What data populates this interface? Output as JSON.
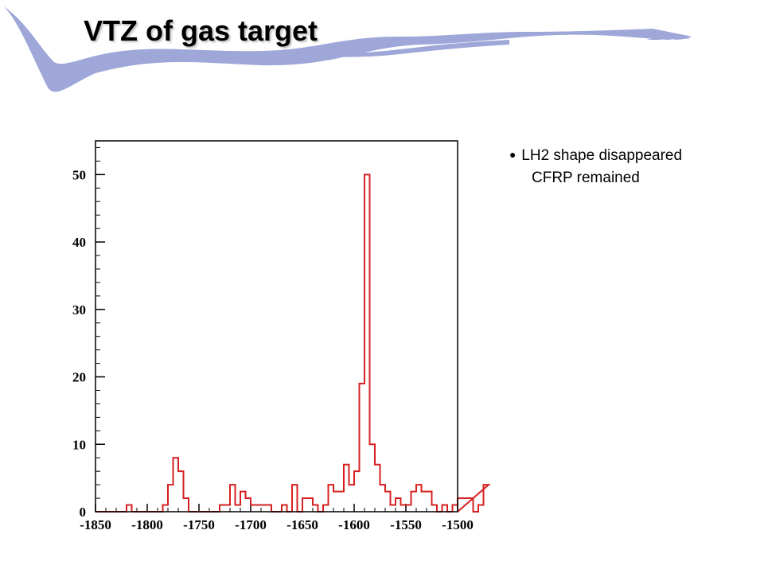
{
  "slide": {
    "title": "VTZ of gas target",
    "bullet_symbol": "●",
    "notes": [
      "LH2 shape disappeared",
      "CFRP remained"
    ],
    "banner_color": "#9ea7d8"
  },
  "chart_data": {
    "type": "bar",
    "style": "step-histogram",
    "line_color": "#d62020",
    "title": "",
    "xlabel": "",
    "ylabel": "",
    "xlim": [
      -1850,
      -1500
    ],
    "ylim": [
      0,
      55
    ],
    "x_ticks": [
      -1850,
      -1800,
      -1750,
      -1700,
      -1650,
      -1600,
      -1550,
      -1500
    ],
    "y_ticks": [
      0,
      10,
      20,
      30,
      40,
      50
    ],
    "grid": false,
    "bin_width": 5,
    "bin_start": -1850,
    "values": [
      0,
      0,
      0,
      0,
      0,
      0,
      1,
      0,
      0,
      0,
      0,
      0,
      0,
      1,
      4,
      8,
      6,
      2,
      0,
      0,
      0,
      0,
      0,
      0,
      1,
      1,
      4,
      1,
      3,
      2,
      1,
      1,
      1,
      1,
      0,
      0,
      1,
      0,
      4,
      0,
      2,
      2,
      1,
      0,
      1,
      4,
      3,
      3,
      7,
      4,
      6,
      19,
      50,
      10,
      7,
      4,
      3,
      1,
      2,
      1,
      1,
      3,
      4,
      3,
      3,
      1,
      0,
      1,
      0,
      1,
      2,
      2,
      2,
      0,
      1,
      4
    ]
  }
}
